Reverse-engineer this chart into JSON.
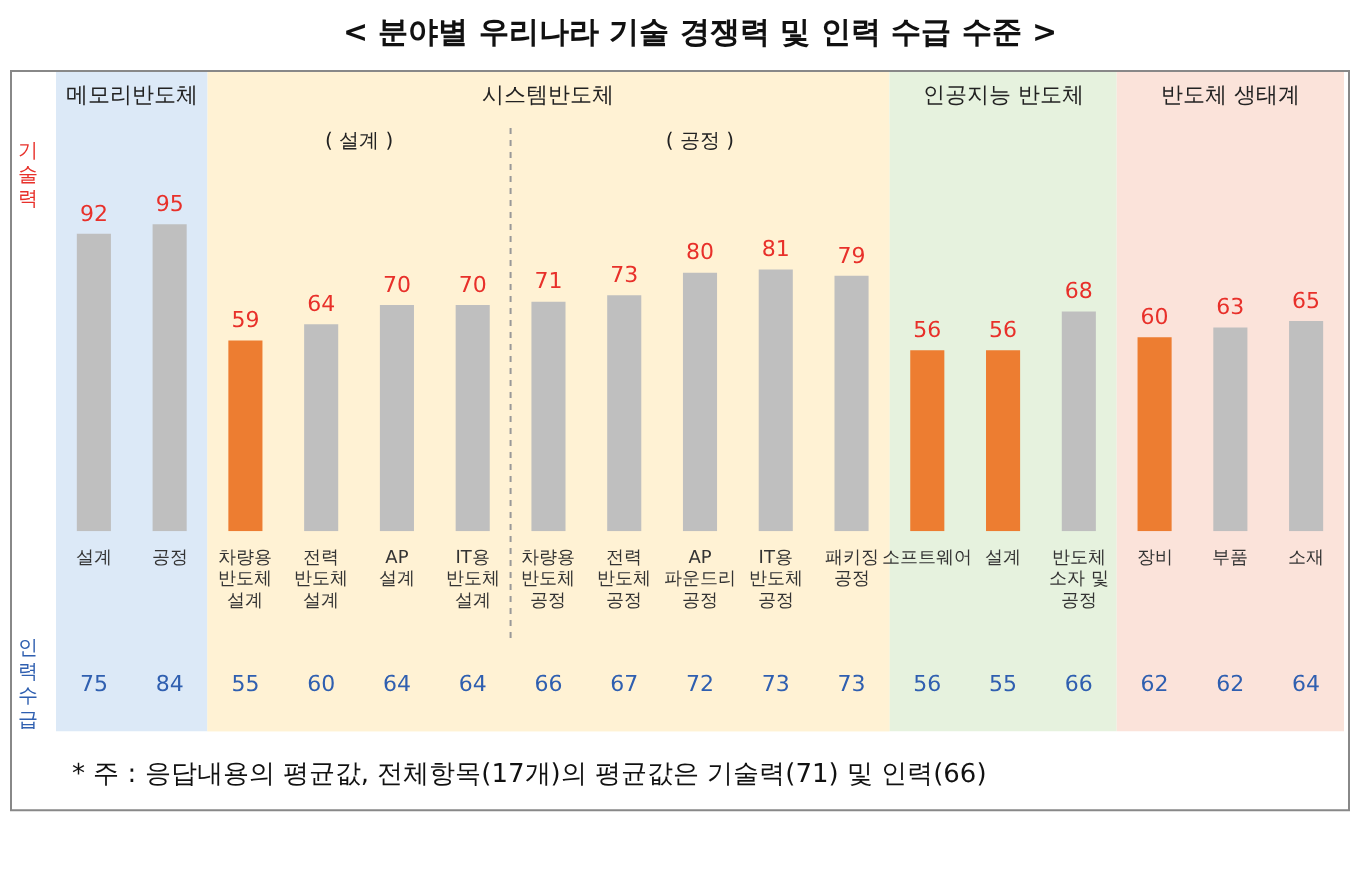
{
  "chart_data": {
    "type": "bar",
    "title": "< 분야별 우리나라 기술 경쟁력 및 인력 수급 수준 >",
    "ylabel": "기술력",
    "categories": [
      "설계",
      "공정",
      "차량용\n반도체\n설계",
      "전력\n반도체\n설계",
      "AP\n설계",
      "IT용\n반도체\n설계",
      "차량용\n반도체\n공정",
      "전력\n반도체\n공정",
      "AP\n파운드리\n공정",
      "IT용\n반도체\n공정",
      "패키징\n공정",
      "소프트웨어",
      "설계",
      "반도체\n소자 및\n공정",
      "장비",
      "부품",
      "소재"
    ],
    "values": [
      92,
      95,
      59,
      64,
      70,
      70,
      71,
      73,
      80,
      81,
      79,
      56,
      56,
      68,
      60,
      63,
      65
    ],
    "colors": [
      "#bfbfbf",
      "#bfbfbf",
      "#ed7d31",
      "#bfbfbf",
      "#bfbfbf",
      "#bfbfbf",
      "#bfbfbf",
      "#bfbfbf",
      "#bfbfbf",
      "#bfbfbf",
      "#bfbfbf",
      "#ed7d31",
      "#ed7d31",
      "#bfbfbf",
      "#ed7d31",
      "#bfbfbf",
      "#bfbfbf"
    ],
    "data_labels": true,
    "tick_labels": "x",
    "legend": false,
    "bands": [
      {
        "axis": "x",
        "from": "설계",
        "to": "공정",
        "label": "메모리반도체",
        "color": "#dce9f7"
      },
      {
        "axis": "x",
        "from": "차량용\n반도체\n설계",
        "to": "패키징\n공정",
        "label": "시스템반도체",
        "color": "#fff2d4"
      },
      {
        "axis": "x",
        "from": "소프트웨어",
        "to": "반도체\n소자 및\n공정",
        "label": "인공지능 반도체",
        "color": "#e6f2de"
      },
      {
        "axis": "x",
        "from": "장비",
        "to": "소재",
        "label": "반도체 생태계",
        "color": "#fbe3da"
      },
      {
        "axis": "x",
        "from": "차량용\n반도체\n설계",
        "to": "IT용\n반도체\n설계",
        "label": "( 설계 )",
        "color": "#fff2d4"
      },
      {
        "axis": "x",
        "from": "차량용\n반도체\n공정",
        "to": "패키징\n공정",
        "label": "( 공정 )",
        "color": "#fff2d4"
      }
    ],
    "annotations": [
      "75",
      "84",
      "55",
      "60",
      "64",
      "64",
      "66",
      "67",
      "72",
      "73",
      "73",
      "56",
      "55",
      "66",
      "62",
      "62",
      "64",
      "인력수급",
      "* 주 : 응답내용의 평균값, 전체항목(17개)의 평균값은 기술력(71) 및 인력(66)"
    ]
  }
}
